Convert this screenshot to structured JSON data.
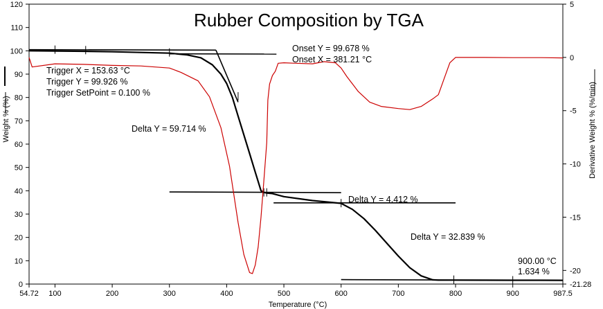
{
  "chart_data": {
    "type": "line",
    "title": "Rubber Composition by TGA",
    "xlabel": "Temperature (°C)",
    "ylabel": "Weight %  (%)",
    "y2label": "Derivative Weight % (%/min)",
    "xlim": [
      54.72,
      987.5
    ],
    "ylim": [
      0,
      120
    ],
    "y2lim": [
      -21.28,
      5
    ],
    "x_ticks": [
      54.72,
      100,
      200,
      300,
      400,
      500,
      600,
      700,
      800,
      900,
      987.5
    ],
    "x_tick_labels": [
      "54.72",
      "100",
      "200",
      "300",
      "400",
      "500",
      "600",
      "700",
      "800",
      "900",
      "987.5"
    ],
    "y_ticks": [
      0,
      10,
      20,
      30,
      40,
      50,
      60,
      70,
      80,
      90,
      100,
      110,
      120
    ],
    "y_tick_labels": [
      "0",
      "10",
      "20",
      "30",
      "40",
      "50",
      "60",
      "70",
      "80",
      "90",
      "100",
      "110",
      "120"
    ],
    "y2_ticks": [
      5,
      0,
      -5,
      -10,
      -15,
      -20,
      -21.28
    ],
    "y2_tick_labels": [
      "5",
      "0",
      "-5",
      "-10",
      "-15",
      "-20",
      "-21.28"
    ],
    "legend": {
      "weight_color": "#000000",
      "derivative_color": "#cc0000"
    },
    "series": [
      {
        "axis": "left",
        "color": "#000000",
        "x": [
          54.72,
          100,
          150,
          200,
          250,
          300,
          330,
          355,
          375,
          390,
          400,
          410,
          420,
          430,
          440,
          450,
          460,
          465,
          470,
          475,
          480,
          500,
          550,
          600,
          620,
          640,
          660,
          680,
          700,
          720,
          740,
          760,
          770,
          800,
          850,
          900,
          950,
          987.5
        ],
        "y": [
          100,
          99.9,
          99.8,
          99.6,
          99.3,
          99.0,
          98.3,
          97.0,
          94.0,
          90.0,
          86.0,
          80.0,
          72.0,
          64.0,
          56.0,
          48.0,
          40.0,
          39.3,
          39.0,
          38.9,
          38.8,
          37.5,
          35.8,
          34.6,
          32.0,
          28.0,
          23.0,
          17.5,
          12.0,
          7.0,
          3.5,
          1.8,
          1.7,
          1.68,
          1.66,
          1.63,
          1.62,
          1.6
        ]
      },
      {
        "axis": "right",
        "color": "#cc0000",
        "x": [
          54.72,
          60,
          100,
          150,
          200,
          250,
          300,
          320,
          350,
          370,
          390,
          405,
          420,
          430,
          440,
          445,
          450,
          455,
          460,
          465,
          470,
          472,
          475,
          480,
          485,
          490,
          500,
          520,
          550,
          570,
          590,
          600,
          610,
          630,
          650,
          670,
          700,
          720,
          740,
          760,
          770,
          780,
          790,
          800,
          850,
          900,
          950,
          987.5
        ],
        "y": [
          0,
          -0.9,
          -0.6,
          -0.65,
          -0.75,
          -0.8,
          -1.0,
          -1.4,
          -2.2,
          -3.7,
          -6.6,
          -10.2,
          -15.5,
          -18.5,
          -20.2,
          -20.3,
          -19.5,
          -17.8,
          -15.0,
          -11.6,
          -8.0,
          -4.0,
          -2.5,
          -1.7,
          -1.3,
          -0.55,
          -0.5,
          -0.55,
          -0.6,
          -0.4,
          -0.5,
          -1.0,
          -1.8,
          -3.2,
          -4.2,
          -4.6,
          -4.8,
          -4.9,
          -4.6,
          -3.9,
          -3.5,
          -2.0,
          -0.5,
          0.0,
          0.0,
          -0.02,
          -0.02,
          -0.05
        ]
      }
    ],
    "annotations": {
      "onset_y": "Onset Y = 99.678 %",
      "onset_x": "Onset X = 381.21 °C",
      "trigger_x": "Trigger X = 153.63 °C",
      "trigger_y": "Trigger Y = 99.926 %",
      "trigger_setpoint": "Trigger SetPoint = 0.100 %",
      "delta1": "Delta Y = 59.714 %",
      "delta2": "Delta Y = 4.412 %",
      "delta3": "Delta Y = 32.839 %",
      "point_temp": "900.00 °C",
      "point_weight": "1.634 %"
    }
  }
}
